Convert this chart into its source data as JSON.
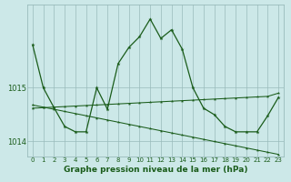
{
  "hours": [
    0,
    1,
    2,
    3,
    4,
    5,
    6,
    7,
    8,
    9,
    10,
    11,
    12,
    13,
    14,
    15,
    16,
    17,
    18,
    19,
    20,
    21,
    22,
    23
  ],
  "p_main": [
    1015.8,
    1015.0,
    1014.63,
    1014.28,
    1014.18,
    1014.18,
    1015.0,
    1014.6,
    1015.45,
    1015.75,
    1015.95,
    1016.28,
    1015.92,
    1016.08,
    1015.72,
    1015.0,
    1014.62,
    1014.5,
    1014.28,
    1014.18,
    1014.18,
    1014.18,
    1014.48,
    1014.82
  ],
  "p_desc": [
    1014.68,
    1014.64,
    1014.6,
    1014.56,
    1014.52,
    1014.48,
    1014.44,
    1014.4,
    1014.36,
    1014.32,
    1014.28,
    1014.24,
    1014.2,
    1014.16,
    1014.12,
    1014.08,
    1014.04,
    1014.0,
    1013.96,
    1013.92,
    1013.88,
    1013.84,
    1013.8,
    1013.76
  ],
  "p_asc": [
    1014.62,
    1014.63,
    1014.64,
    1014.65,
    1014.66,
    1014.67,
    1014.68,
    1014.69,
    1014.7,
    1014.71,
    1014.72,
    1014.73,
    1014.74,
    1014.75,
    1014.76,
    1014.77,
    1014.78,
    1014.79,
    1014.8,
    1014.81,
    1014.82,
    1014.83,
    1014.84,
    1014.9
  ],
  "ylim": [
    1013.72,
    1016.55
  ],
  "yticks": [
    1014,
    1015
  ],
  "xlabel": "Graphe pression niveau de la mer (hPa)",
  "bg_color": "#cce8e8",
  "line_color": "#1a5c1a",
  "grid_color": "#99bbbb"
}
